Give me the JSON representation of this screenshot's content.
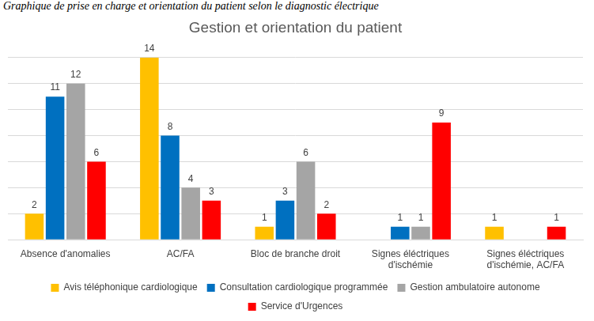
{
  "chart_data": {
    "type": "bar",
    "caption": "Graphique de prise en charge et orientation du patient selon le diagnostic électrique",
    "title": "Gestion et orientation du patient",
    "categories": [
      "Absence d'anomalies",
      "AC/FA",
      "Bloc de branche droit",
      "Signes éléctriques d'ischémie",
      "Signes éléctriques d'ischémie, AC/FA"
    ],
    "series": [
      {
        "name": "Avis téléphonique cardiologique",
        "color": "#ffc000",
        "values": [
          2,
          14,
          1,
          null,
          1
        ]
      },
      {
        "name": "Consultation cardiologique programmée",
        "color": "#0070c0",
        "values": [
          11,
          8,
          3,
          1,
          null
        ]
      },
      {
        "name": "Gestion ambulatoire autonome",
        "color": "#a5a5a5",
        "values": [
          12,
          4,
          6,
          1,
          null
        ]
      },
      {
        "name": "Service d'Urgences",
        "color": "#ff0000",
        "values": [
          6,
          3,
          2,
          9,
          1
        ]
      }
    ],
    "ylim": [
      0,
      14
    ],
    "yticks": [
      0,
      2,
      4,
      6,
      8,
      10,
      12,
      14
    ],
    "grid": true,
    "legend": "bottom",
    "data_labels": true,
    "tick_labels": "x"
  }
}
